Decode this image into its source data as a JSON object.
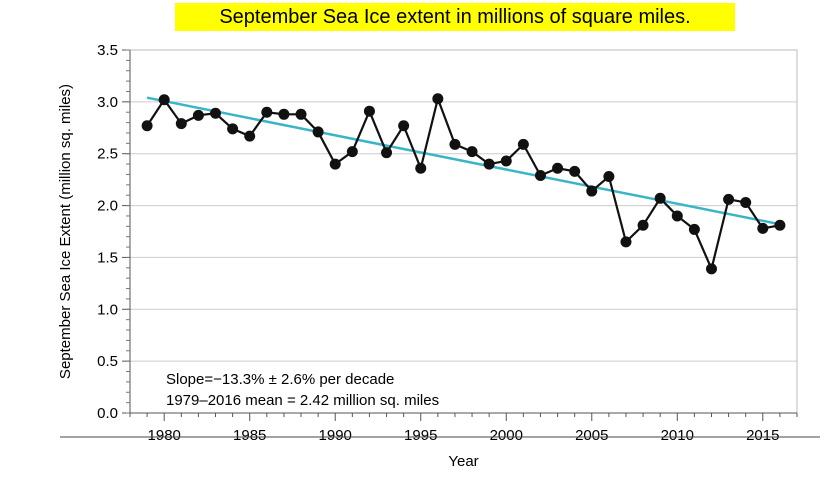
{
  "banner": {
    "text": "September Sea Ice extent in millions of square miles."
  },
  "colors": {
    "banner_bg": "#ffff00",
    "series": "#111111",
    "trend": "#3ab5c8",
    "grid": "#cccccc"
  },
  "chart_data": {
    "type": "line",
    "title": "September Sea Ice extent in millions of square miles.",
    "xlabel": "Year",
    "ylabel": "September Sea Ice Extent (million sq. miles)",
    "xlim": [
      1978,
      2017
    ],
    "ylim": [
      0.0,
      3.5
    ],
    "xticks": [
      1980,
      1985,
      1990,
      1995,
      2000,
      2005,
      2010,
      2015
    ],
    "yticks": [
      "0.0",
      "0.5",
      "1.0",
      "1.5",
      "2.0",
      "2.5",
      "3.0",
      "3.5"
    ],
    "grid": "horizontal",
    "series": [
      {
        "x": [
          1979,
          1980,
          1981,
          1982,
          1983,
          1984,
          1985,
          1986,
          1987,
          1988,
          1989,
          1990,
          1991,
          1992,
          1993,
          1994,
          1995,
          1996,
          1997,
          1998,
          1999,
          2000,
          2001,
          2002,
          2003,
          2004,
          2005,
          2006,
          2007,
          2008,
          2009,
          2010,
          2011,
          2012,
          2013,
          2014,
          2015,
          2016
        ],
        "y": [
          2.77,
          3.02,
          2.79,
          2.87,
          2.89,
          2.74,
          2.67,
          2.9,
          2.88,
          2.88,
          2.71,
          2.4,
          2.52,
          2.91,
          2.51,
          2.77,
          2.36,
          3.03,
          2.59,
          2.52,
          2.4,
          2.43,
          2.59,
          2.29,
          2.36,
          2.33,
          2.14,
          2.28,
          1.65,
          1.81,
          2.07,
          1.9,
          1.77,
          1.39,
          2.06,
          2.03,
          1.78,
          1.81
        ],
        "marker": "circle"
      }
    ],
    "trend_line": {
      "x": [
        1979,
        2016
      ],
      "y": [
        3.04,
        1.82
      ]
    },
    "annotations": [
      "Slope=−13.3% ± 2.6% per decade",
      "1979–2016 mean = 2.42 million sq. miles"
    ]
  }
}
